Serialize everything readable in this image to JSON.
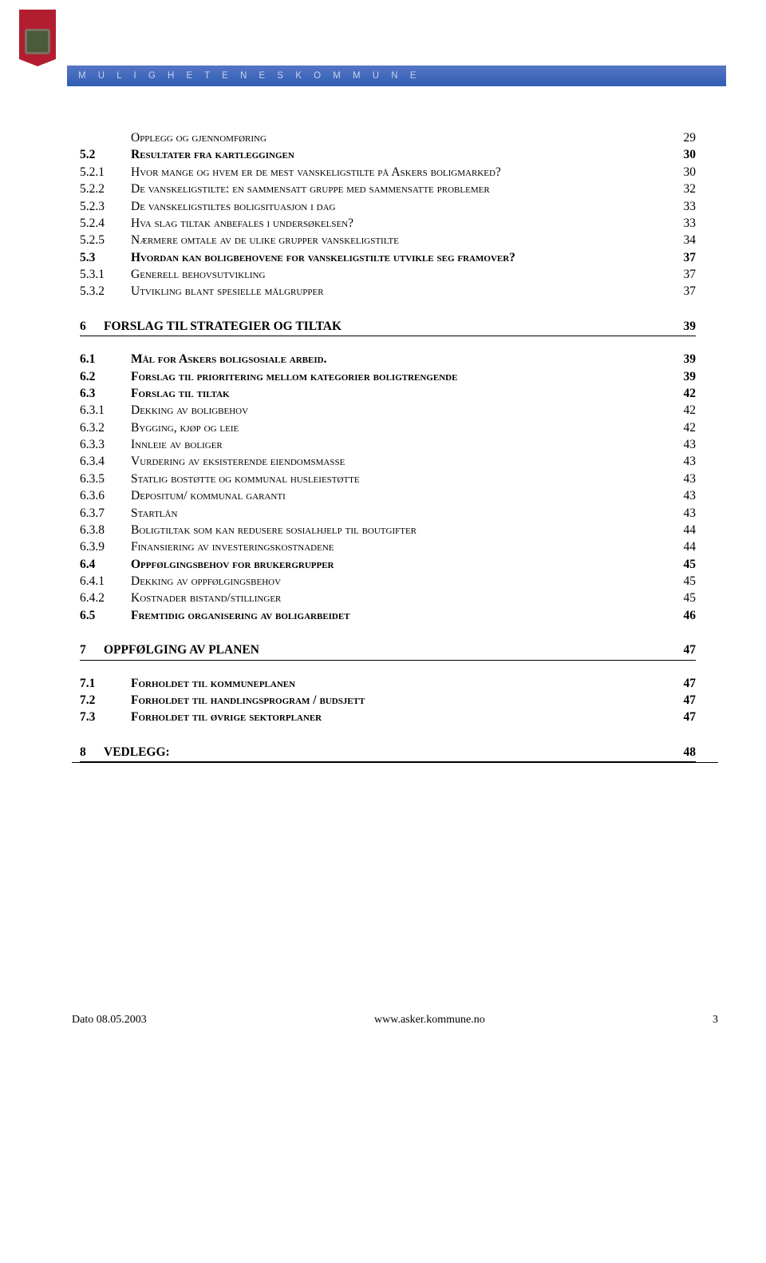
{
  "header": {
    "tagline": "M U L I G H E T E N E S   K O M M U N E"
  },
  "group1": [
    {
      "num": "",
      "title": "Opplegg og gjennomføring",
      "page": "29",
      "bold": false,
      "sc": true
    },
    {
      "num": "5.2",
      "title": "Resultater fra kartleggingen",
      "page": "30",
      "bold": true,
      "sc": true
    },
    {
      "num": "5.2.1",
      "title": "Hvor mange og hvem er de mest vanskeligstilte på Askers boligmarked?",
      "page": "30",
      "bold": false,
      "sc": true
    },
    {
      "num": "5.2.2",
      "title": "De vanskeligstilte: en sammensatt gruppe med sammensatte problemer",
      "page": "32",
      "bold": false,
      "sc": true
    },
    {
      "num": "5.2.3",
      "title": "De vanskeligstiltes boligsituasjon i dag",
      "page": "33",
      "bold": false,
      "sc": true
    },
    {
      "num": "5.2.4",
      "title": "Hva slag tiltak anbefales i undersøkelsen?",
      "page": "33",
      "bold": false,
      "sc": true
    },
    {
      "num": "5.2.5",
      "title": "Nærmere omtale av de ulike grupper vanskeligstilte",
      "page": "34",
      "bold": false,
      "sc": true
    },
    {
      "num": "5.3",
      "title": "Hvordan kan boligbehovene for vanskeligstilte utvikle seg framover?",
      "page": "37",
      "bold": true,
      "sc": true
    },
    {
      "num": "5.3.1",
      "title": "Generell behovsutvikling",
      "page": "37",
      "bold": false,
      "sc": true
    },
    {
      "num": "5.3.2",
      "title": "Utvikling blant spesielle målgrupper",
      "page": "37",
      "bold": false,
      "sc": true
    }
  ],
  "heading6": {
    "num": "6",
    "title": "FORSLAG TIL STRATEGIER OG TILTAK",
    "page": "39"
  },
  "group2": [
    {
      "num": "6.1",
      "title": "Mål for Askers boligsosiale arbeid.",
      "page": "39",
      "bold": true,
      "sc": true
    },
    {
      "num": "6.2",
      "title": "Forslag til prioritering mellom kategorier boligtrengende",
      "page": "39",
      "bold": true,
      "sc": true
    },
    {
      "num": "6.3",
      "title": "Forslag til tiltak",
      "page": "42",
      "bold": true,
      "sc": true
    },
    {
      "num": "6.3.1",
      "title": "Dekking av boligbehov",
      "page": "42",
      "bold": false,
      "sc": true
    },
    {
      "num": "6.3.2",
      "title": "Bygging, kjøp og leie",
      "page": "42",
      "bold": false,
      "sc": true
    },
    {
      "num": "6.3.3",
      "title": "Innleie av boliger",
      "page": "43",
      "bold": false,
      "sc": true
    },
    {
      "num": "6.3.4",
      "title": "Vurdering av eksisterende eiendomsmasse",
      "page": "43",
      "bold": false,
      "sc": true
    },
    {
      "num": "6.3.5",
      "title": "Statlig bostøtte og kommunal husleiestøtte",
      "page": "43",
      "bold": false,
      "sc": true
    },
    {
      "num": "6.3.6",
      "title": "Depositum/ kommunal garanti",
      "page": "43",
      "bold": false,
      "sc": true
    },
    {
      "num": "6.3.7",
      "title": "Startlån",
      "page": "43",
      "bold": false,
      "sc": true
    },
    {
      "num": "6.3.8",
      "title": "Boligtiltak som kan redusere sosialhjelp til boutgifter",
      "page": "44",
      "bold": false,
      "sc": true
    },
    {
      "num": "6.3.9",
      "title": "Finansiering av investeringskostnadene",
      "page": "44",
      "bold": false,
      "sc": true
    },
    {
      "num": "6.4",
      "title": "Oppfølgingsbehov for brukergrupper",
      "page": "45",
      "bold": true,
      "sc": true
    },
    {
      "num": "6.4.1",
      "title": "Dekking av oppfølgingsbehov",
      "page": "45",
      "bold": false,
      "sc": true
    },
    {
      "num": "6.4.2",
      "title": "Kostnader bistand/stillinger",
      "page": "45",
      "bold": false,
      "sc": true
    },
    {
      "num": "6.5",
      "title": "Fremtidig organisering av boligarbeidet",
      "page": "46",
      "bold": true,
      "sc": true
    }
  ],
  "heading7": {
    "num": "7",
    "title": "OPPFØLGING AV PLANEN",
    "page": "47"
  },
  "group3": [
    {
      "num": "7.1",
      "title": "Forholdet til kommuneplanen",
      "page": "47",
      "bold": true,
      "sc": true
    },
    {
      "num": "7.2",
      "title": "Forholdet til handlingsprogram / budsjett",
      "page": "47",
      "bold": true,
      "sc": true
    },
    {
      "num": "7.3",
      "title": "Forholdet til øvrige sektorplaner",
      "page": "47",
      "bold": true,
      "sc": true
    }
  ],
  "heading8": {
    "num": "8",
    "title": "VEDLEGG:",
    "page": "48"
  },
  "footer": {
    "date": "Dato 08.05.2003",
    "url": "www.asker.kommune.no",
    "page": "3"
  }
}
